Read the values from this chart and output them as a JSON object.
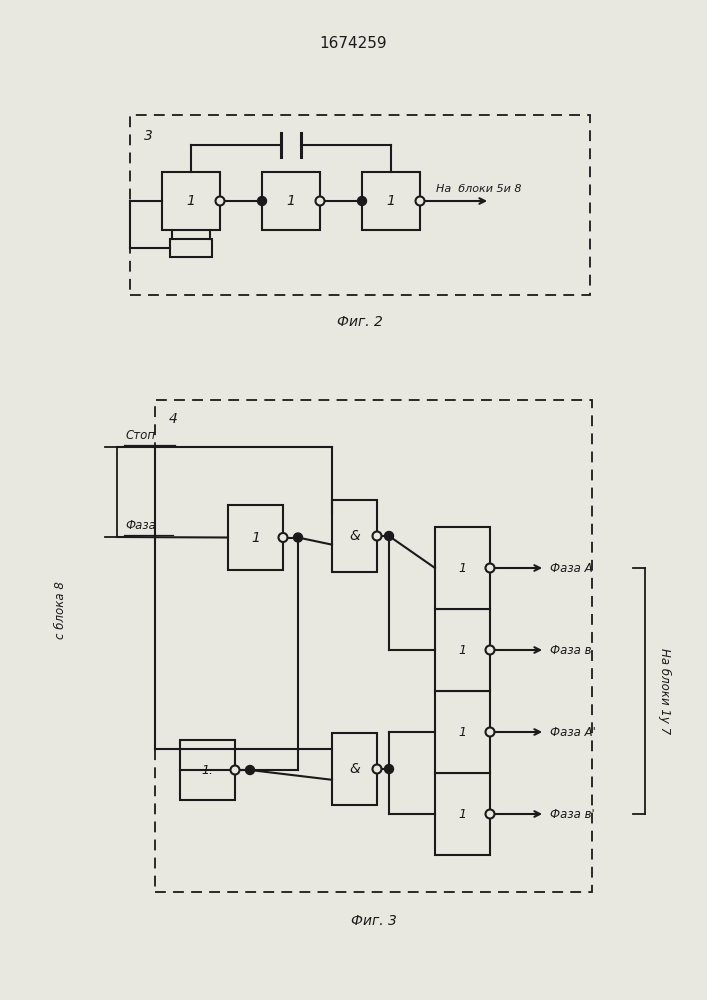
{
  "title": "1674259",
  "fig2_label": "3",
  "fig3_label": "4",
  "fig2_caption": "Фиг. 2",
  "fig3_caption": "Фиг. 3",
  "bg_color": "#e8e8e0",
  "line_color": "#1a1a1a",
  "box_color": "#e8e8e0",
  "text_na_bloki_58": "На  блоки 5и 8",
  "text_s_bloka_8": "с блока 8",
  "text_stop": "Стоп",
  "text_faza": "Фаза",
  "text_na_bloki_17": "На блоки 1у 7",
  "text_faza_A": "Фаза А",
  "text_faza_B": "Фаза в",
  "text_faza_A2": "Фаза А'",
  "text_faza_B2": "Фаза в'"
}
